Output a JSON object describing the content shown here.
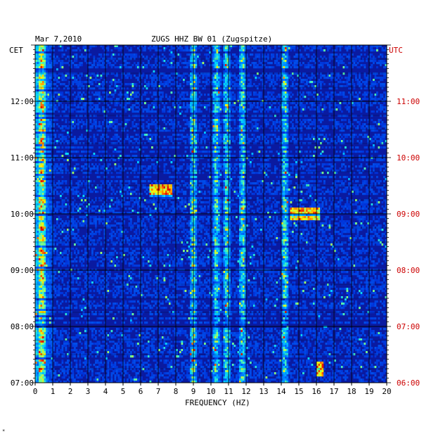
{
  "header": {
    "date": "Mar 7,2010",
    "station": "ZUGS HHZ BW 01 (Zugspitze)",
    "left_zone": "CET",
    "right_zone": "UTC"
  },
  "footer_mark": "*",
  "chart_data": {
    "type": "heatmap",
    "title": "ZUGS HHZ BW 01 (Zugspitze)",
    "date": "Mar 7,2010",
    "xlabel": "FREQUENCY (HZ)",
    "xlim": [
      0,
      20
    ],
    "x_ticks": [
      "0",
      "1",
      "2",
      "3",
      "4",
      "5",
      "6",
      "7",
      "8",
      "9",
      "10",
      "11",
      "12",
      "13",
      "14",
      "15",
      "16",
      "17",
      "18",
      "19",
      "20"
    ],
    "ylim_cet_hours": [
      7.0,
      13.0
    ],
    "y_ticks_cet": [
      "07:00",
      "08:00",
      "09:00",
      "10:00",
      "11:00",
      "12:00"
    ],
    "y_ticks_utc": [
      "06:00",
      "07:00",
      "08:00",
      "09:00",
      "10:00",
      "11:00"
    ],
    "colors": {
      "background": "#0a1aa0",
      "gridline": "#000000",
      "utc_label": "#cc0000",
      "scale_low": "#0010a0",
      "scale_high": "#ff2000"
    },
    "persistent_bands_hz": [
      0.4,
      9.0,
      10.3,
      10.9,
      11.8,
      14.2
    ],
    "notable_events": [
      {
        "cet": "10:00",
        "freq_range_hz": [
          14.5,
          16.2
        ],
        "note": "strong broadband burst"
      },
      {
        "cet": "10:25",
        "freq_range_hz": [
          6.5,
          7.8
        ],
        "note": "strong burst"
      },
      {
        "cet": "07:15",
        "freq_range_hz": [
          16.0,
          16.4
        ],
        "note": "short event"
      }
    ]
  }
}
